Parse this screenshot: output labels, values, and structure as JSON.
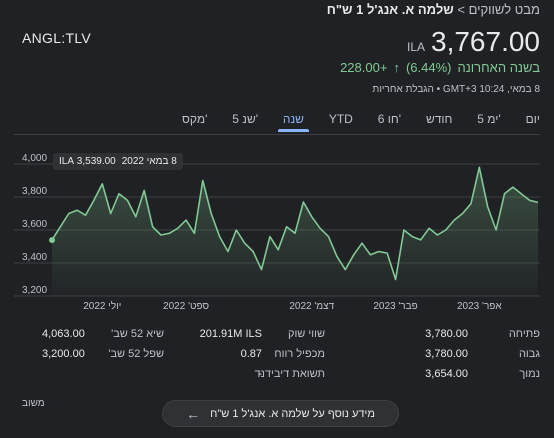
{
  "breadcrumb": {
    "parent": "מבט לשווקים",
    "separator": ">",
    "current": "שלמה א. אנג'ל 1 ש\"ח"
  },
  "ticker": "ANGL:TLV",
  "price": {
    "value": "3,767.00",
    "currency": "ILA"
  },
  "change": {
    "arrow_icon": "arrow-up-icon",
    "amount": "+228.00",
    "percent": "(6.44%)",
    "period": "בשנה האחרונה",
    "color": "#81c995"
  },
  "timestamp": "8 במאי, 10:24 GMT+3 • הגבלת אחריות",
  "tabs": [
    {
      "label": "יום",
      "active": false
    },
    {
      "label": "5 ימ'",
      "active": false
    },
    {
      "label": "חודש",
      "active": false
    },
    {
      "label": "6 חו'",
      "active": false
    },
    {
      "label": "YTD",
      "active": false
    },
    {
      "label": "שנה",
      "active": true
    },
    {
      "label": "5 שנ'",
      "active": false
    },
    {
      "label": "מקס'",
      "active": false
    }
  ],
  "tooltip": {
    "date": "8 במאי 2022",
    "value": "3,539.00 ILA"
  },
  "chart_data": {
    "type": "area",
    "ylim": [
      3200,
      4000
    ],
    "y_ticks": [
      "4,000",
      "3,800",
      "3,600",
      "3,400",
      "3,200"
    ],
    "y_tick_values": [
      4000,
      3800,
      3600,
      3400,
      3200
    ],
    "x_ticks": [
      "יולי 2022",
      "ספט' 2022",
      "דצמ' 2022",
      "פבר' 2023",
      "אפר' 2023"
    ],
    "x_tick_index": [
      6,
      16,
      31,
      41,
      51
    ],
    "grid": true,
    "line_color": "#81c995",
    "series": [
      {
        "values": [
          3539,
          3620,
          3700,
          3720,
          3690,
          3780,
          3880,
          3700,
          3820,
          3780,
          3680,
          3840,
          3620,
          3570,
          3580,
          3610,
          3660,
          3580,
          3900,
          3700,
          3560,
          3470,
          3600,
          3520,
          3470,
          3360,
          3560,
          3480,
          3620,
          3580,
          3770,
          3680,
          3610,
          3560,
          3440,
          3360,
          3450,
          3520,
          3450,
          3470,
          3460,
          3300,
          3600,
          3560,
          3540,
          3610,
          3570,
          3600,
          3660,
          3700,
          3760,
          3980,
          3740,
          3600,
          3820,
          3860,
          3820,
          3780,
          3767
        ]
      }
    ]
  },
  "stats": {
    "col1": [
      {
        "label": "פתיחה",
        "value": "3,780.00"
      },
      {
        "label": "גבוה",
        "value": "3,780.00"
      },
      {
        "label": "נמוך",
        "value": "3,654.00"
      }
    ],
    "col2": [
      {
        "label": "שווי שוק",
        "value": "201.91M ILS"
      },
      {
        "label": "מכפיל רווח",
        "value": "0.87"
      },
      {
        "label": "תשואת דיבידנד",
        "value": "-"
      }
    ],
    "col3": [
      {
        "label": "שיא 52 שב'",
        "value": "4,063.00"
      },
      {
        "label": "שפל 52 שב'",
        "value": "3,200.00"
      }
    ]
  },
  "footer": {
    "feedback_label": "משוב",
    "more_info_button": "מידע נוסף על שלמה א. אנג'ל 1 ש\"ח",
    "more_info_icon": "arrow-left-icon"
  }
}
